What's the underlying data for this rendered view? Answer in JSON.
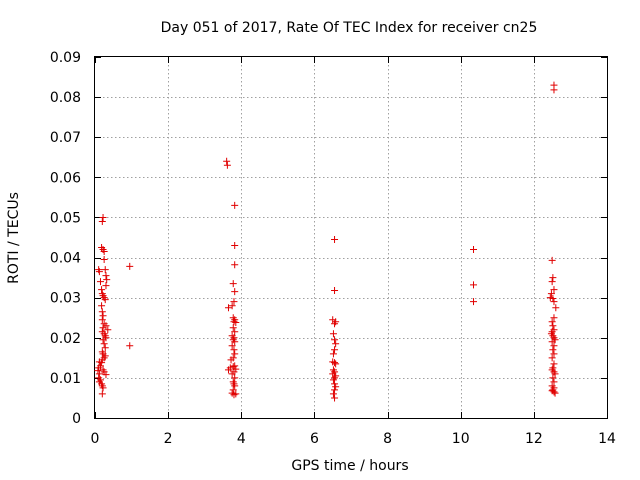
{
  "chart_data": {
    "type": "scatter",
    "title": "Day 051 of 2017, Rate Of TEC Index for receiver cn25",
    "xlabel": "GPS time / hours",
    "ylabel": "ROTI / TECUs",
    "xlim": [
      0,
      14
    ],
    "ylim": [
      0,
      0.09
    ],
    "xticks": [
      0,
      2,
      4,
      6,
      8,
      10,
      12,
      14
    ],
    "xtick_labels": [
      "0",
      "2",
      "4",
      "6",
      "8",
      "10",
      "12",
      "14"
    ],
    "yticks": [
      0,
      0.01,
      0.02,
      0.03,
      0.04,
      0.05,
      0.06,
      0.07,
      0.08,
      0.09
    ],
    "ytick_labels": [
      "0",
      "0.01",
      "0.02",
      "0.03",
      "0.04",
      "0.05",
      "0.06",
      "0.07",
      "0.08",
      "0.09"
    ],
    "grid": true,
    "marker": "+",
    "color": "#e00000",
    "series": [
      {
        "name": "ROTI",
        "points": [
          [
            0.08,
            0.0118
          ],
          [
            0.1,
            0.0125
          ],
          [
            0.12,
            0.011
          ],
          [
            0.1,
            0.01
          ],
          [
            0.15,
            0.0095
          ],
          [
            0.12,
            0.009
          ],
          [
            0.18,
            0.0085
          ],
          [
            0.2,
            0.008
          ],
          [
            0.22,
            0.0075
          ],
          [
            0.2,
            0.006
          ],
          [
            0.15,
            0.013
          ],
          [
            0.18,
            0.0138
          ],
          [
            0.2,
            0.0145
          ],
          [
            0.25,
            0.015
          ],
          [
            0.28,
            0.0155
          ],
          [
            0.12,
            0.014
          ],
          [
            0.22,
            0.012
          ],
          [
            0.25,
            0.0115
          ],
          [
            0.3,
            0.0108
          ],
          [
            0.1,
            0.037
          ],
          [
            0.12,
            0.0365
          ],
          [
            0.15,
            0.034
          ],
          [
            0.18,
            0.032
          ],
          [
            0.2,
            0.031
          ],
          [
            0.22,
            0.0305
          ],
          [
            0.25,
            0.03
          ],
          [
            0.28,
            0.0295
          ],
          [
            0.18,
            0.028
          ],
          [
            0.2,
            0.0265
          ],
          [
            0.22,
            0.0255
          ],
          [
            0.2,
            0.0245
          ],
          [
            0.25,
            0.0235
          ],
          [
            0.22,
            0.0225
          ],
          [
            0.3,
            0.023
          ],
          [
            0.35,
            0.022
          ],
          [
            0.2,
            0.0215
          ],
          [
            0.25,
            0.021
          ],
          [
            0.28,
            0.0205
          ],
          [
            0.3,
            0.02
          ],
          [
            0.22,
            0.0195
          ],
          [
            0.25,
            0.0185
          ],
          [
            0.28,
            0.0175
          ],
          [
            0.2,
            0.0165
          ],
          [
            0.22,
            0.016
          ],
          [
            0.18,
            0.0425
          ],
          [
            0.22,
            0.042
          ],
          [
            0.25,
            0.0415
          ],
          [
            0.2,
            0.049
          ],
          [
            0.22,
            0.05
          ],
          [
            0.25,
            0.0395
          ],
          [
            0.28,
            0.037
          ],
          [
            0.3,
            0.0355
          ],
          [
            0.32,
            0.0345
          ],
          [
            0.3,
            0.033
          ],
          [
            0.95,
            0.0378
          ],
          [
            0.95,
            0.018
          ],
          [
            3.6,
            0.064
          ],
          [
            3.62,
            0.063
          ],
          [
            3.82,
            0.053
          ],
          [
            3.82,
            0.043
          ],
          [
            3.82,
            0.0382
          ],
          [
            3.78,
            0.0335
          ],
          [
            3.82,
            0.0315
          ],
          [
            3.8,
            0.029
          ],
          [
            3.75,
            0.028
          ],
          [
            3.65,
            0.0275
          ],
          [
            3.78,
            0.025
          ],
          [
            3.82,
            0.0245
          ],
          [
            3.8,
            0.024
          ],
          [
            3.85,
            0.0238
          ],
          [
            3.78,
            0.0225
          ],
          [
            3.82,
            0.0215
          ],
          [
            3.75,
            0.0205
          ],
          [
            3.8,
            0.02
          ],
          [
            3.78,
            0.0195
          ],
          [
            3.82,
            0.019
          ],
          [
            3.75,
            0.018
          ],
          [
            3.8,
            0.017
          ],
          [
            3.82,
            0.016
          ],
          [
            3.78,
            0.015
          ],
          [
            3.72,
            0.0145
          ],
          [
            3.65,
            0.012
          ],
          [
            3.7,
            0.0125
          ],
          [
            3.78,
            0.0128
          ],
          [
            3.82,
            0.013
          ],
          [
            3.85,
            0.0122
          ],
          [
            3.8,
            0.0115
          ],
          [
            3.75,
            0.011
          ],
          [
            3.82,
            0.01
          ],
          [
            3.78,
            0.009
          ],
          [
            3.8,
            0.0085
          ],
          [
            3.82,
            0.008
          ],
          [
            3.78,
            0.007
          ],
          [
            3.75,
            0.0062
          ],
          [
            3.8,
            0.0058
          ],
          [
            3.85,
            0.006
          ],
          [
            6.55,
            0.0445
          ],
          [
            6.55,
            0.0318
          ],
          [
            6.5,
            0.0245
          ],
          [
            6.58,
            0.024
          ],
          [
            6.55,
            0.0235
          ],
          [
            6.52,
            0.021
          ],
          [
            6.55,
            0.0195
          ],
          [
            6.58,
            0.0185
          ],
          [
            6.55,
            0.017
          ],
          [
            6.52,
            0.016
          ],
          [
            6.5,
            0.014
          ],
          [
            6.55,
            0.0138
          ],
          [
            6.58,
            0.0135
          ],
          [
            6.52,
            0.012
          ],
          [
            6.55,
            0.0115
          ],
          [
            6.5,
            0.011
          ],
          [
            6.58,
            0.0105
          ],
          [
            6.55,
            0.01
          ],
          [
            6.52,
            0.0095
          ],
          [
            6.55,
            0.0085
          ],
          [
            6.58,
            0.0078
          ],
          [
            6.55,
            0.007
          ],
          [
            6.52,
            0.006
          ],
          [
            6.55,
            0.005
          ],
          [
            10.35,
            0.042
          ],
          [
            10.35,
            0.0332
          ],
          [
            10.35,
            0.029
          ],
          [
            12.55,
            0.083
          ],
          [
            12.55,
            0.0818
          ],
          [
            12.5,
            0.0393
          ],
          [
            12.52,
            0.035
          ],
          [
            12.5,
            0.034
          ],
          [
            12.55,
            0.032
          ],
          [
            12.48,
            0.031
          ],
          [
            12.45,
            0.03
          ],
          [
            12.52,
            0.0298
          ],
          [
            12.55,
            0.029
          ],
          [
            12.6,
            0.0275
          ],
          [
            12.55,
            0.025
          ],
          [
            12.5,
            0.024
          ],
          [
            12.52,
            0.023
          ],
          [
            12.55,
            0.022
          ],
          [
            12.5,
            0.0215
          ],
          [
            12.48,
            0.021
          ],
          [
            12.52,
            0.0205
          ],
          [
            12.55,
            0.02
          ],
          [
            12.58,
            0.0195
          ],
          [
            12.5,
            0.019
          ],
          [
            12.55,
            0.018
          ],
          [
            12.52,
            0.017
          ],
          [
            12.55,
            0.016
          ],
          [
            12.5,
            0.015
          ],
          [
            12.55,
            0.0135
          ],
          [
            12.52,
            0.0125
          ],
          [
            12.5,
            0.012
          ],
          [
            12.55,
            0.0115
          ],
          [
            12.58,
            0.011
          ],
          [
            12.52,
            0.01
          ],
          [
            12.55,
            0.009
          ],
          [
            12.5,
            0.008
          ],
          [
            12.55,
            0.0075
          ],
          [
            12.52,
            0.007
          ],
          [
            12.5,
            0.0068
          ],
          [
            12.55,
            0.0065
          ],
          [
            12.58,
            0.0062
          ]
        ]
      }
    ]
  }
}
